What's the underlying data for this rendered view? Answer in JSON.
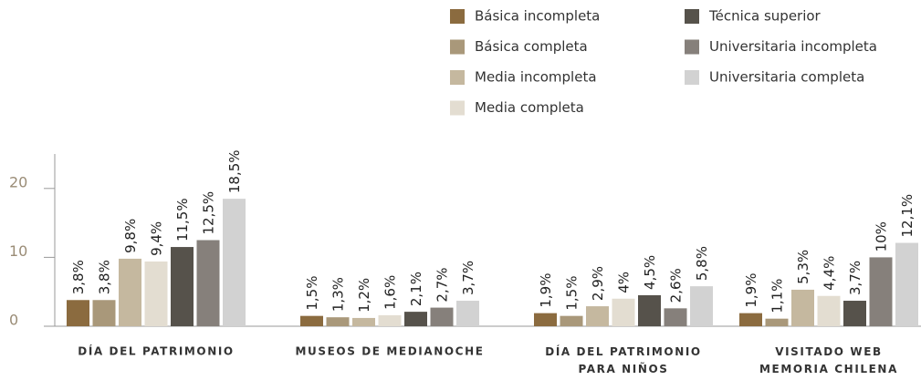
{
  "chart_data": {
    "type": "bar",
    "categories": [
      "DÍA DEL PATRIMONIO",
      "MUSEOS DE MEDIANOCHE",
      "DÍA DEL PATRIMONIO PARA NIÑOS",
      "VISITADO WEB MEMORIA CHILENA"
    ],
    "series": [
      {
        "name": "Básica incompleta",
        "color": "#8b6b3f",
        "values": [
          3.8,
          1.5,
          1.9,
          1.9
        ],
        "value_labels": [
          "3,8%",
          "1,5%",
          "1,9%",
          "1,9%"
        ]
      },
      {
        "name": "Básica completa",
        "color": "#a9987a",
        "values": [
          3.8,
          1.3,
          1.5,
          1.1
        ],
        "value_labels": [
          "3,8%",
          "1,3%",
          "1,5%",
          "1,1%"
        ]
      },
      {
        "name": "Media incompleta",
        "color": "#c5b89f",
        "values": [
          9.8,
          1.2,
          2.9,
          5.3
        ],
        "value_labels": [
          "9,8%",
          "1,2%",
          "2,9%",
          "5,3%"
        ]
      },
      {
        "name": "Media completa",
        "color": "#e3ddd1",
        "values": [
          9.4,
          1.6,
          4,
          4.4
        ],
        "value_labels": [
          "9,4%",
          "1,6%",
          "4%",
          "4,4%"
        ]
      },
      {
        "name": "Técnica superior",
        "color": "#56524b",
        "values": [
          11.5,
          2.1,
          4.5,
          3.7
        ],
        "value_labels": [
          "11,5%",
          "2,1%",
          "4,5%",
          "3,7%"
        ]
      },
      {
        "name": "Universitaria incompleta",
        "color": "#86807b",
        "values": [
          12.5,
          2.7,
          2.6,
          10
        ],
        "value_labels": [
          "12,5%",
          "2,7%",
          "2,6%",
          "10%"
        ]
      },
      {
        "name": "Universitaria completa",
        "color": "#d2d2d2",
        "values": [
          18.5,
          3.7,
          5.8,
          12.1
        ],
        "value_labels": [
          "18,5%",
          "3,7%",
          "5,8%",
          "12,1%"
        ]
      }
    ],
    "ylim": [
      0,
      25
    ],
    "yticks": [
      0,
      10,
      20
    ]
  }
}
